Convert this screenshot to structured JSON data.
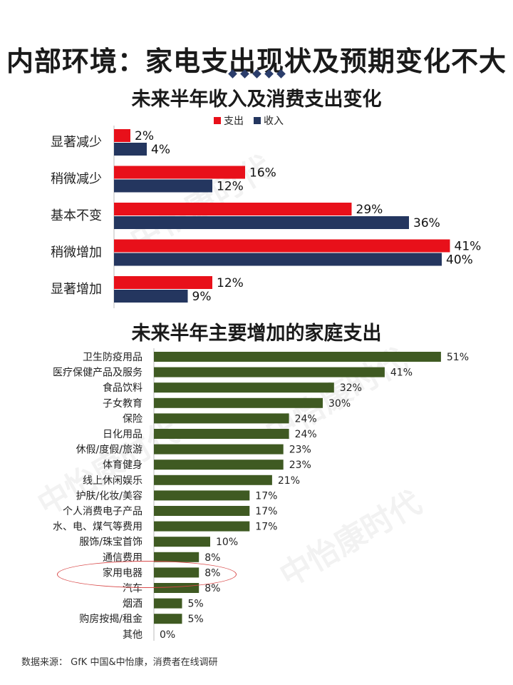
{
  "page": {
    "title": "内部环境：家电支出现状及预期变化不大",
    "source": "数据来源： GfK 中国&中怡康，消费者在线调研",
    "watermark": "中怡康时代"
  },
  "chart_data": [
    {
      "type": "bar",
      "orientation": "horizontal",
      "title": "未来半年收入及消费支出变化",
      "categories": [
        "显著减少",
        "稍微减少",
        "基本不变",
        "稍微增加",
        "显著增加"
      ],
      "series": [
        {
          "name": "支出",
          "color": "#e8101a",
          "values": [
            2,
            16,
            29,
            41,
            12
          ]
        },
        {
          "name": "收入",
          "color": "#24365f",
          "values": [
            4,
            12,
            36,
            40,
            9
          ]
        }
      ],
      "value_suffix": "%",
      "legend": "top",
      "grid": false
    },
    {
      "type": "bar",
      "orientation": "horizontal",
      "title": "未来半年主要增加的家庭支出",
      "categories": [
        "卫生防疫用品",
        "医疗保健产品及服务",
        "食品饮料",
        "子女教育",
        "保险",
        "日化用品",
        "休假/度假/旅游",
        "体育健身",
        "线上休闲娱乐",
        "护肤/化妆/美容",
        "个人消费电子产品",
        "水、电、煤气等费用",
        "服饰/珠宝首饰",
        "通信费用",
        "家用电器",
        "汽车",
        "烟酒",
        "购房按揭/租金",
        "其他"
      ],
      "values": [
        51,
        41,
        32,
        30,
        24,
        24,
        23,
        23,
        21,
        17,
        17,
        17,
        10,
        8,
        8,
        8,
        5,
        5,
        0
      ],
      "color": "#3f5a22",
      "value_suffix": "%",
      "highlight": "家用电器",
      "grid": false
    }
  ]
}
